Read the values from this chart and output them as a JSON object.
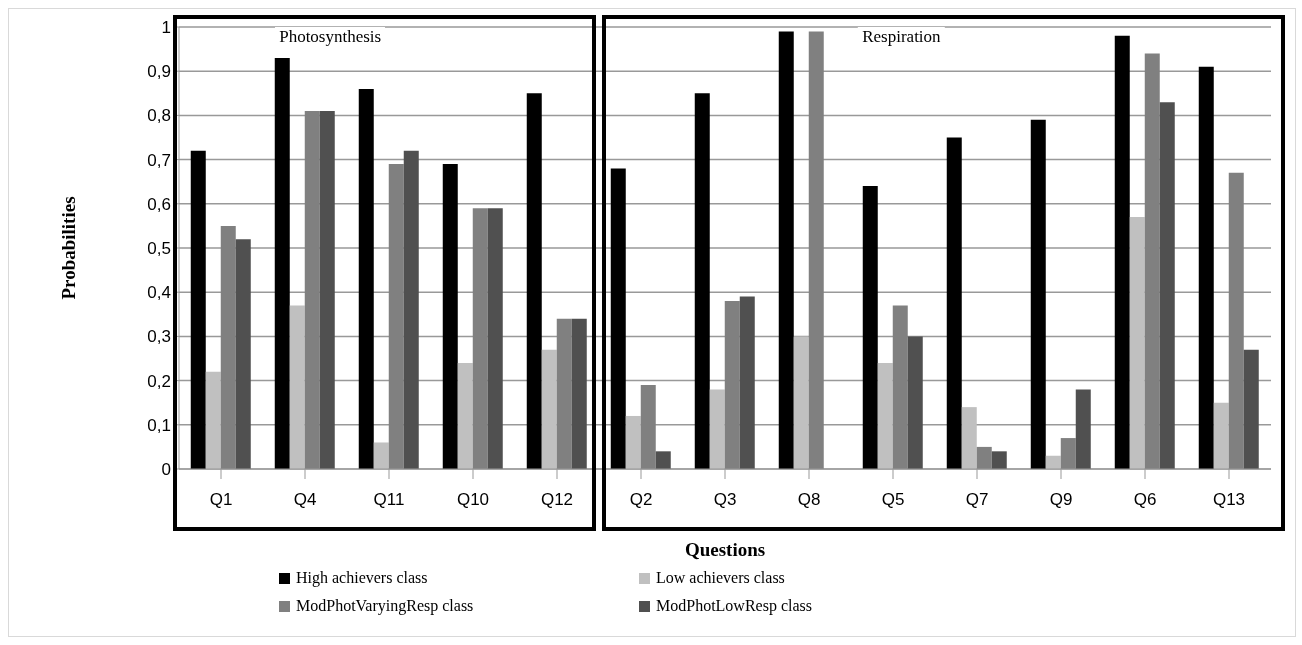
{
  "chart_data": {
    "type": "bar",
    "xlabel": "Questions",
    "ylabel": "Probabilities",
    "categories": [
      "Q1",
      "Q4",
      "Q11",
      "Q10",
      "Q12",
      "Q2",
      "Q3",
      "Q8",
      "Q5",
      "Q7",
      "Q9",
      "Q6",
      "Q13"
    ],
    "series": [
      {
        "name": "High achievers class",
        "color": "#000000",
        "values": [
          0.72,
          0.93,
          0.86,
          0.69,
          0.85,
          0.68,
          0.85,
          0.99,
          0.64,
          0.75,
          0.79,
          0.98,
          0.91
        ]
      },
      {
        "name": "Low achievers class",
        "color": "#c0c0c0",
        "values": [
          0.22,
          0.37,
          0.06,
          0.24,
          0.27,
          0.12,
          0.18,
          0.3,
          0.24,
          0.14,
          0.03,
          0.57,
          0.15
        ]
      },
      {
        "name": "ModPhotVaryingResp class",
        "color": "#808080",
        "values": [
          0.55,
          0.81,
          0.69,
          0.59,
          0.34,
          0.19,
          0.38,
          0.99,
          0.37,
          0.05,
          0.07,
          0.94,
          0.67
        ]
      },
      {
        "name": "ModPhotLowResp class",
        "color": "#505050",
        "values": [
          0.52,
          0.81,
          0.72,
          0.59,
          0.34,
          0.04,
          0.39,
          0,
          0.3,
          0.04,
          0.18,
          0.83,
          0.27
        ]
      }
    ],
    "ylim": [
      0,
      1
    ],
    "yticks": [
      0,
      {
        "value": 0.1,
        "label": "0,1"
      },
      {
        "value": 0.2,
        "label": "0,2"
      },
      {
        "value": 0.3,
        "label": "0,3"
      },
      {
        "value": 0.4,
        "label": "0,4"
      },
      {
        "value": 0.5,
        "label": "0,5"
      },
      {
        "value": 0.6,
        "label": "0,6"
      },
      {
        "value": 0.7,
        "label": "0,7"
      },
      {
        "value": 0.8,
        "label": "0,8"
      },
      {
        "value": 0.9,
        "label": "0,9"
      },
      1
    ],
    "grid": "y",
    "legend": "bottom",
    "annotations": [
      "Photosynthesis",
      "Respiration"
    ]
  }
}
